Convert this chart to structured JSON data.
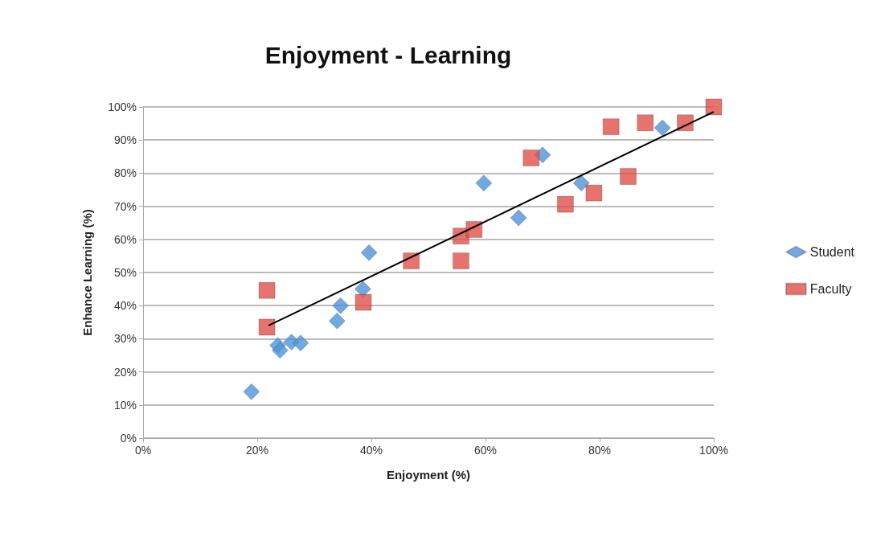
{
  "chart_data": {
    "type": "scatter",
    "title": "Enjoyment - Learning",
    "xlabel": "Enjoyment (%)",
    "ylabel": "Enhance Learning (%)",
    "xlim": [
      0,
      100
    ],
    "xticks": [
      {
        "value": 0,
        "label": "0%"
      },
      {
        "value": 20,
        "label": "20%"
      },
      {
        "value": 40,
        "label": "40%"
      },
      {
        "value": 60,
        "label": "60%"
      },
      {
        "value": 80,
        "label": "80%"
      },
      {
        "value": 100,
        "label": "100%"
      }
    ],
    "ylim": [
      0,
      100
    ],
    "yticks": [
      {
        "value": 0,
        "label": "0%"
      },
      {
        "value": 10,
        "label": "10%"
      },
      {
        "value": 20,
        "label": "20%"
      },
      {
        "value": 30,
        "label": "30%"
      },
      {
        "value": 40,
        "label": "40%"
      },
      {
        "value": 50,
        "label": "50%"
      },
      {
        "value": 60,
        "label": "60%"
      },
      {
        "value": 70,
        "label": "70%"
      },
      {
        "value": 80,
        "label": "80%"
      },
      {
        "value": 90,
        "label": "90%"
      },
      {
        "value": 100,
        "label": "100%"
      }
    ],
    "grid": "y",
    "legend": "right",
    "series": [
      {
        "name": "Student",
        "color": "#4f93d8",
        "marker": "diamond",
        "x": [
          19,
          23.6,
          24,
          26,
          27.6,
          34,
          34.6,
          38.5,
          39.6,
          59.7,
          65.8,
          70,
          76.8,
          91
        ],
        "values": [
          14,
          28,
          26.5,
          29,
          28.7,
          35.4,
          40,
          45,
          56,
          77,
          66.5,
          85.5,
          77,
          93.7
        ]
      },
      {
        "name": "Faculty",
        "color": "#e0504a",
        "marker": "square",
        "x": [
          21.7,
          21.7,
          38.6,
          47,
          55.7,
          55.7,
          58,
          68,
          74,
          79,
          82,
          85,
          88,
          95,
          100
        ],
        "values": [
          44.6,
          33.5,
          41,
          53.5,
          53.5,
          61,
          63,
          84.6,
          70.6,
          74,
          94,
          79,
          95.2,
          95.2,
          100
        ]
      },
      {
        "type": "line",
        "color": "#000000",
        "marker": "none",
        "x": [
          22,
          100
        ],
        "values": [
          34,
          98.5
        ]
      }
    ]
  }
}
